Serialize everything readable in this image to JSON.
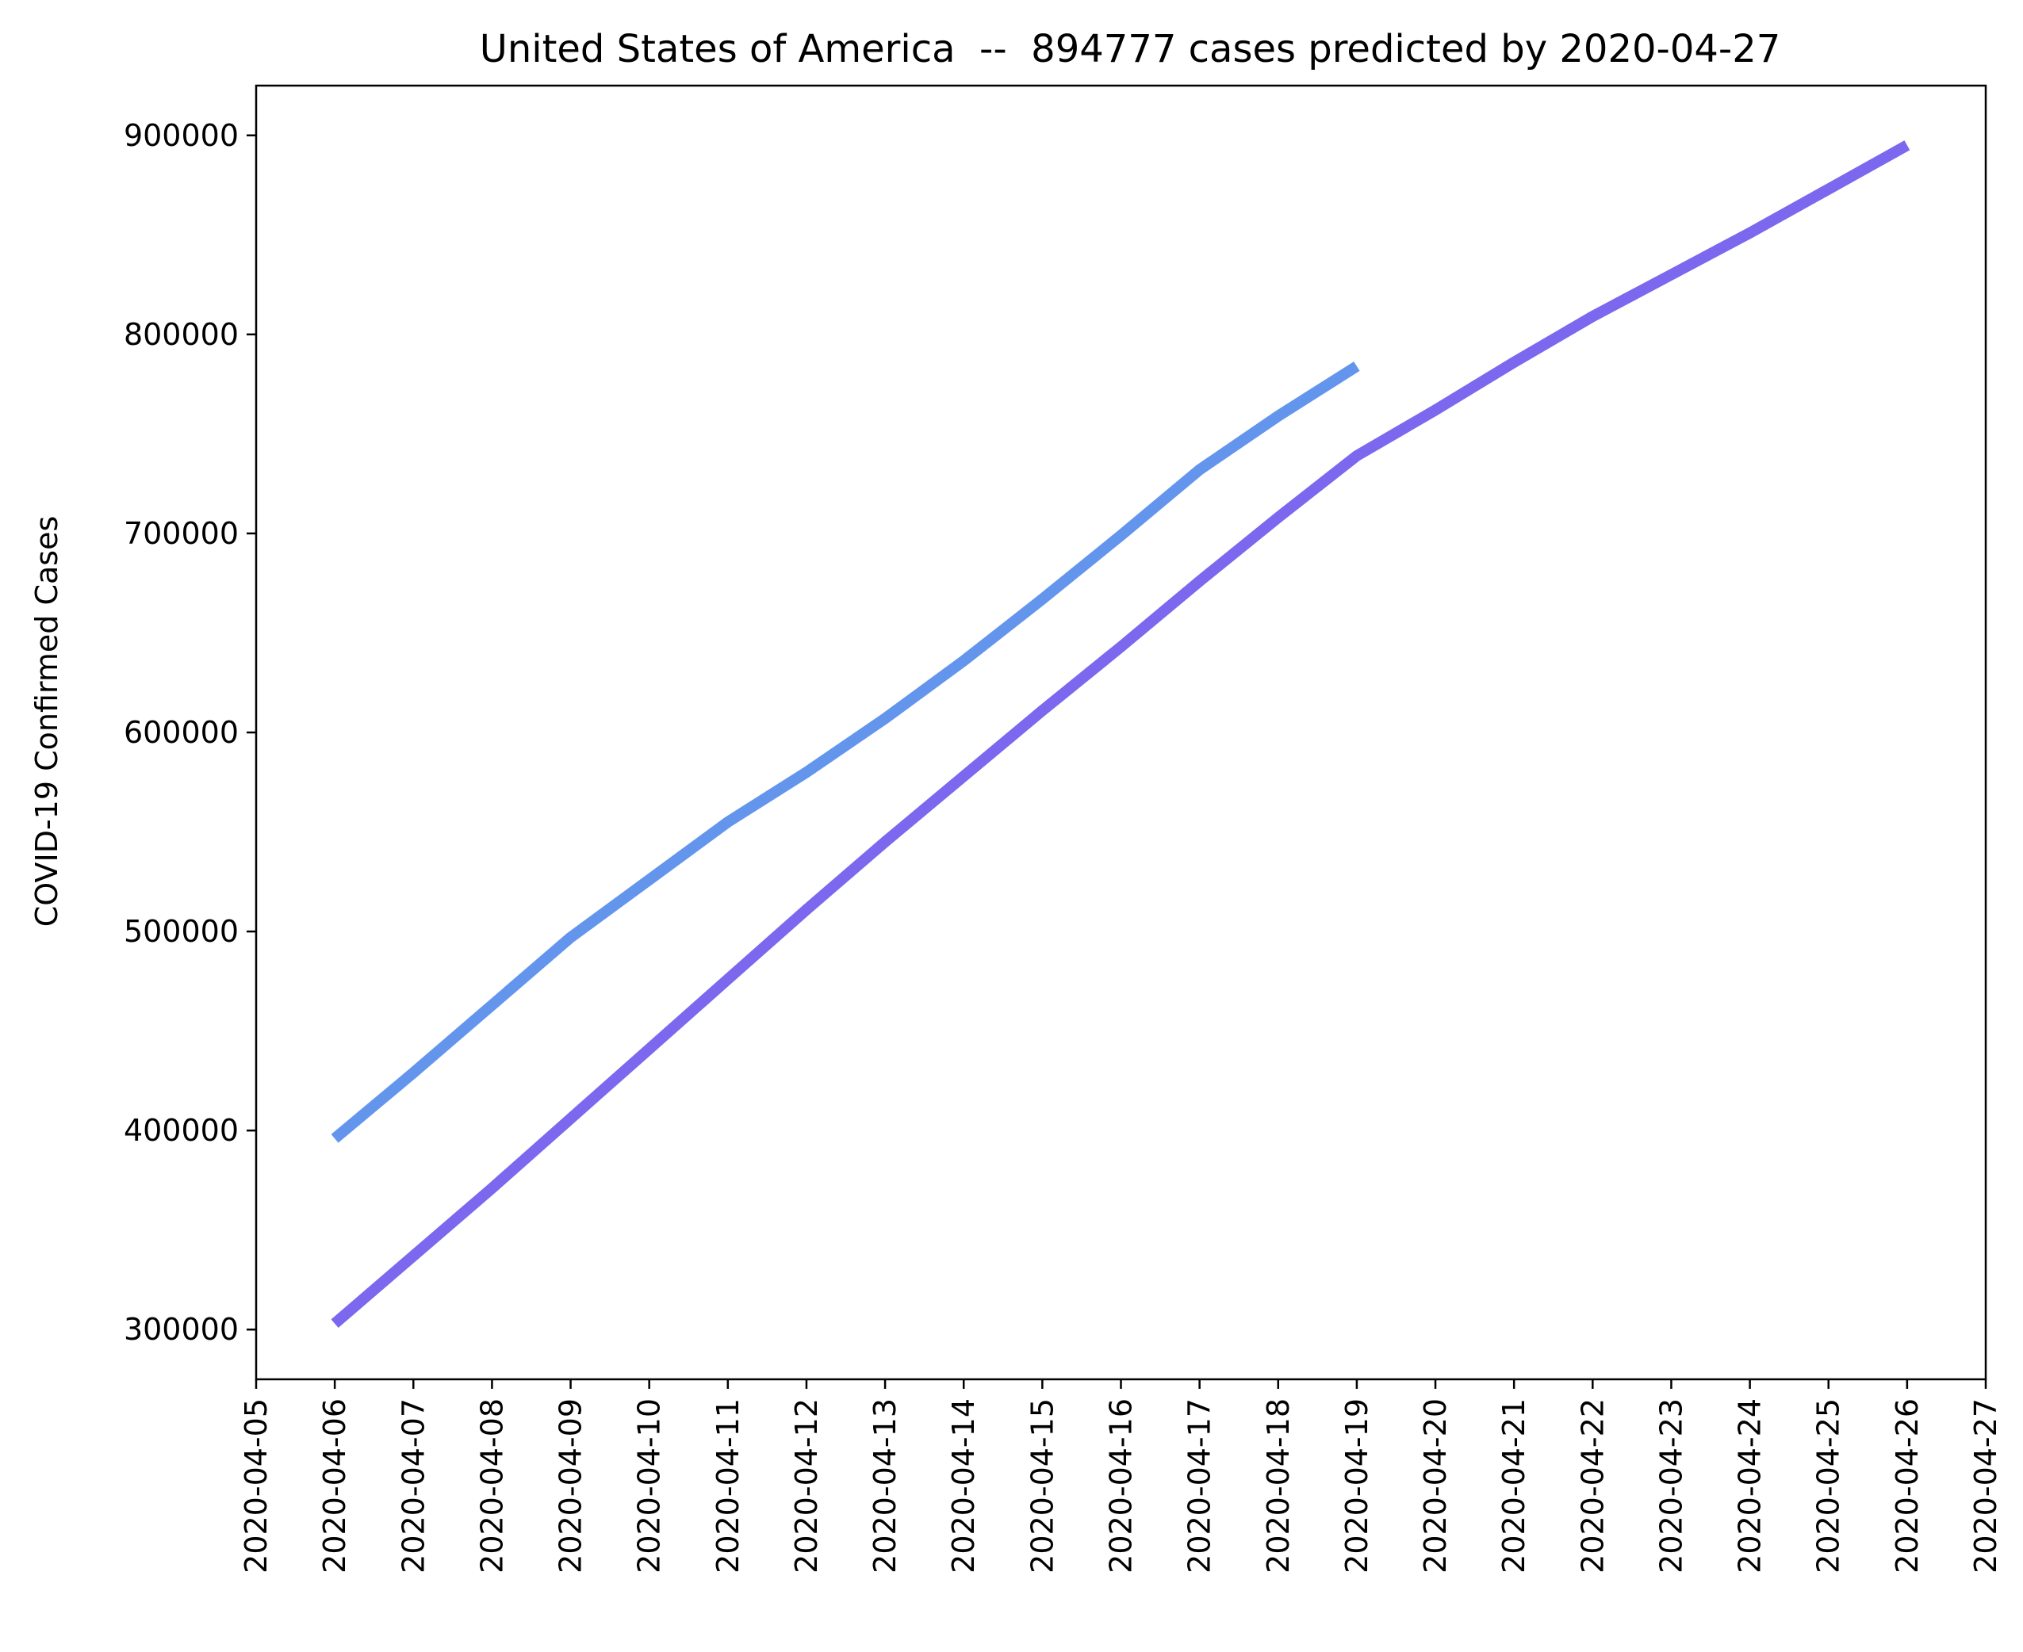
{
  "chart_data": {
    "type": "line",
    "title": "United States of America  --  894777 cases predicted by 2020-04-27",
    "xlabel": "",
    "ylabel": "COVID-19 Confirmed Cases",
    "x_ticks": [
      "2020-04-05",
      "2020-04-06",
      "2020-04-07",
      "2020-04-08",
      "2020-04-09",
      "2020-04-10",
      "2020-04-11",
      "2020-04-12",
      "2020-04-13",
      "2020-04-14",
      "2020-04-15",
      "2020-04-16",
      "2020-04-17",
      "2020-04-18",
      "2020-04-19",
      "2020-04-20",
      "2020-04-21",
      "2020-04-22",
      "2020-04-23",
      "2020-04-24",
      "2020-04-25",
      "2020-04-26",
      "2020-04-27"
    ],
    "xlim": [
      "2020-04-05",
      "2020-04-27"
    ],
    "y_ticks": [
      300000,
      400000,
      500000,
      600000,
      700000,
      800000,
      900000
    ],
    "ylim": [
      275000,
      925000
    ],
    "grid": false,
    "series": [
      {
        "color": "#6495ED",
        "x": [
          "2020-04-06",
          "2020-04-07",
          "2020-04-08",
          "2020-04-09",
          "2020-04-10",
          "2020-04-11",
          "2020-04-12",
          "2020-04-13",
          "2020-04-14",
          "2020-04-15",
          "2020-04-16",
          "2020-04-17",
          "2020-04-18",
          "2020-04-19"
        ],
        "values": [
          396000,
          429000,
          463000,
          497000,
          526000,
          555000,
          580000,
          607000,
          636000,
          667000,
          699000,
          732000,
          759000,
          784000
        ]
      },
      {
        "color": "#7B68EE",
        "x": [
          "2020-04-06",
          "2020-04-07",
          "2020-04-08",
          "2020-04-09",
          "2020-04-10",
          "2020-04-11",
          "2020-04-12",
          "2020-04-13",
          "2020-04-14",
          "2020-04-15",
          "2020-04-16",
          "2020-04-17",
          "2020-04-18",
          "2020-04-19",
          "2020-04-20",
          "2020-04-21",
          "2020-04-22",
          "2020-04-23",
          "2020-04-24",
          "2020-04-25",
          "2020-04-26"
        ],
        "values": [
          303000,
          337000,
          371000,
          406000,
          441000,
          476000,
          511000,
          545000,
          578000,
          611000,
          643000,
          676000,
          708000,
          739000,
          762000,
          786000,
          809000,
          830000,
          851000,
          873000,
          895000
        ]
      }
    ]
  }
}
